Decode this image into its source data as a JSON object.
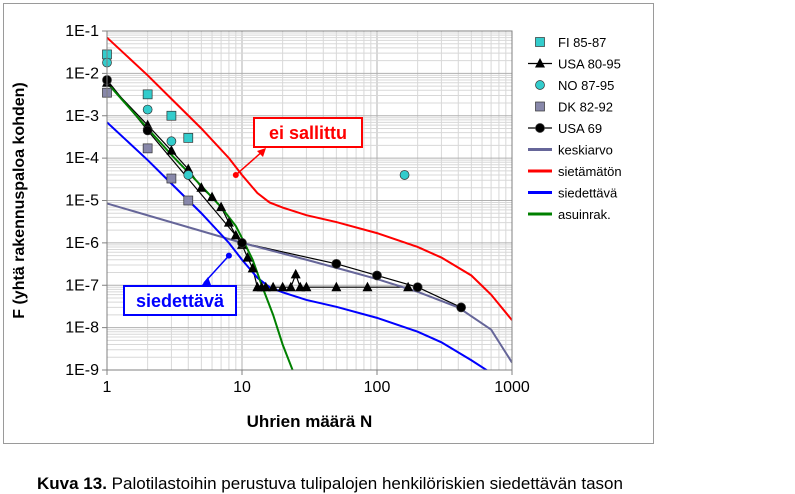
{
  "chart_data": {
    "type": "scatter",
    "xscale": "log",
    "yscale": "log",
    "xlim": [
      1,
      1000
    ],
    "ylim": [
      1e-09,
      0.1
    ],
    "xlabel": "Uhrien määrä N",
    "ylabel": "F (yhtä rakennuspaloa kohden)",
    "xticks": [
      "1",
      "10",
      "100",
      "1000"
    ],
    "yticks": [
      "1E-9",
      "1E-8",
      "1E-7",
      "1E-6",
      "1E-5",
      "1E-4",
      "1E-3",
      "1E-2",
      "1E-1"
    ],
    "grid": true,
    "legend_position": "right",
    "series": [
      {
        "name": "FI 85-87",
        "kind": "marker",
        "marker": "square",
        "color": "#33cccc",
        "x": [
          1,
          2,
          3,
          4
        ],
        "y": [
          0.028,
          0.0032,
          0.001,
          0.0003
        ]
      },
      {
        "name": "USA 80-95",
        "kind": "line-marker",
        "marker": "triangle",
        "color": "#000000",
        "x": [
          1,
          2,
          3,
          4,
          5,
          6,
          7,
          8,
          9,
          10,
          11,
          12,
          13,
          14,
          15,
          17,
          20,
          23,
          25,
          27,
          30,
          50,
          85,
          170
        ],
        "y": [
          0.006,
          0.0006,
          0.00015,
          5.5e-05,
          2e-05,
          1.2e-05,
          7e-06,
          3e-06,
          1.5e-06,
          9e-07,
          4.5e-07,
          2.5e-07,
          9e-08,
          9e-08,
          9e-08,
          9e-08,
          9e-08,
          9e-08,
          1.8e-07,
          9e-08,
          9e-08,
          9e-08,
          9e-08,
          9e-08
        ]
      },
      {
        "name": "NO 87-95",
        "kind": "marker",
        "marker": "circle",
        "color": "#33cccc",
        "x": [
          1,
          2,
          3,
          4,
          160
        ],
        "y": [
          0.018,
          0.0014,
          0.00025,
          4e-05,
          4e-05
        ]
      },
      {
        "name": "DK 82-92",
        "kind": "marker",
        "marker": "square",
        "color": "#8888aa",
        "x": [
          1,
          2,
          3,
          4
        ],
        "y": [
          0.0035,
          0.00017,
          3.3e-05,
          1e-05
        ]
      },
      {
        "name": "USA 69",
        "kind": "line-marker",
        "marker": "circle",
        "color": "#000000",
        "x": [
          1,
          2,
          10,
          50,
          100,
          200,
          420
        ],
        "y": [
          0.007,
          0.00045,
          1e-06,
          3.2e-07,
          1.7e-07,
          9e-08,
          3e-08
        ]
      },
      {
        "name": "keskiarvo",
        "kind": "line",
        "color": "#666699",
        "width": 2,
        "x": [
          1,
          10,
          30,
          60,
          100,
          200,
          400,
          700,
          1000
        ],
        "y": [
          8.5e-06,
          1e-06,
          4e-07,
          2.2e-07,
          1.4e-07,
          7e-08,
          3e-08,
          9e-09,
          1.5e-09
        ]
      },
      {
        "name": "sietämätön",
        "kind": "line",
        "color": "#ff0000",
        "width": 2,
        "x": [
          1,
          2,
          3,
          5,
          8,
          10,
          13,
          16,
          20,
          30,
          50,
          100,
          200,
          300,
          500,
          700,
          1000
        ],
        "y": [
          0.07,
          0.009,
          0.0025,
          0.0005,
          0.0001,
          4e-05,
          1.5e-05,
          9e-06,
          6.8e-06,
          4.5e-06,
          3.1e-06,
          1.7e-06,
          8e-07,
          4.5e-07,
          1.7e-07,
          6e-08,
          1.5e-08
        ]
      },
      {
        "name": "siedettävä",
        "kind": "line",
        "color": "#0000ff",
        "width": 2,
        "x": [
          1,
          2,
          3,
          5,
          8,
          10,
          13,
          16,
          20,
          30,
          50,
          100,
          200,
          300,
          500,
          700
        ],
        "y": [
          0.0007,
          9e-05,
          2.5e-05,
          5e-06,
          1e-06,
          4e-07,
          1.5e-07,
          9e-08,
          6.8e-08,
          4.5e-08,
          3.1e-08,
          1.7e-08,
          8e-09,
          4.5e-09,
          1.7e-09,
          8e-10
        ]
      },
      {
        "name": "asuinrak.",
        "kind": "line",
        "color": "#008000",
        "width": 2,
        "x": [
          1,
          2,
          3,
          5,
          7,
          9,
          10,
          12,
          14,
          17,
          20,
          24
        ],
        "y": [
          0.006,
          0.0005,
          0.00012,
          2.2e-05,
          7e-06,
          2.5e-06,
          1.3e-06,
          4e-07,
          1e-07,
          2e-08,
          4e-09,
          9e-10
        ]
      }
    ],
    "annotations": [
      {
        "text": "ei sallittu",
        "color": "#ff0000",
        "point": {
          "x": 9,
          "y": 4e-05
        }
      },
      {
        "text": "siedettävä",
        "color": "#0000ff",
        "point": {
          "x": 8,
          "y": 5e-07
        }
      }
    ]
  },
  "caption": {
    "label": "Kuva 13.",
    "text": "Palotilastoihin perustuva tulipalojen henkilöriskien siedettävän tason"
  }
}
